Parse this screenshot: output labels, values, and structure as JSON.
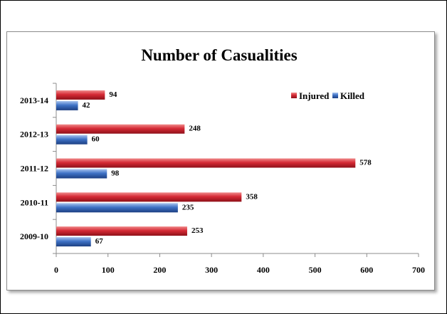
{
  "chart_data": {
    "type": "bar",
    "orientation": "horizontal",
    "title": "Number of Casualities",
    "categories": [
      "2009-10",
      "2010-11",
      "2011-12",
      "2012-13",
      "2013-14"
    ],
    "series": [
      {
        "name": "Injured",
        "color": "#c0232d",
        "values": [
          253,
          358,
          578,
          248,
          94
        ]
      },
      {
        "name": "Killed",
        "color": "#3566b8",
        "values": [
          67,
          235,
          98,
          60,
          42
        ]
      }
    ],
    "xlim": [
      0,
      700
    ],
    "xticks": [
      "0",
      "100",
      "200",
      "300",
      "400",
      "500",
      "600",
      "700"
    ],
    "grid": false,
    "legend": "top-right",
    "data_labels": true
  }
}
